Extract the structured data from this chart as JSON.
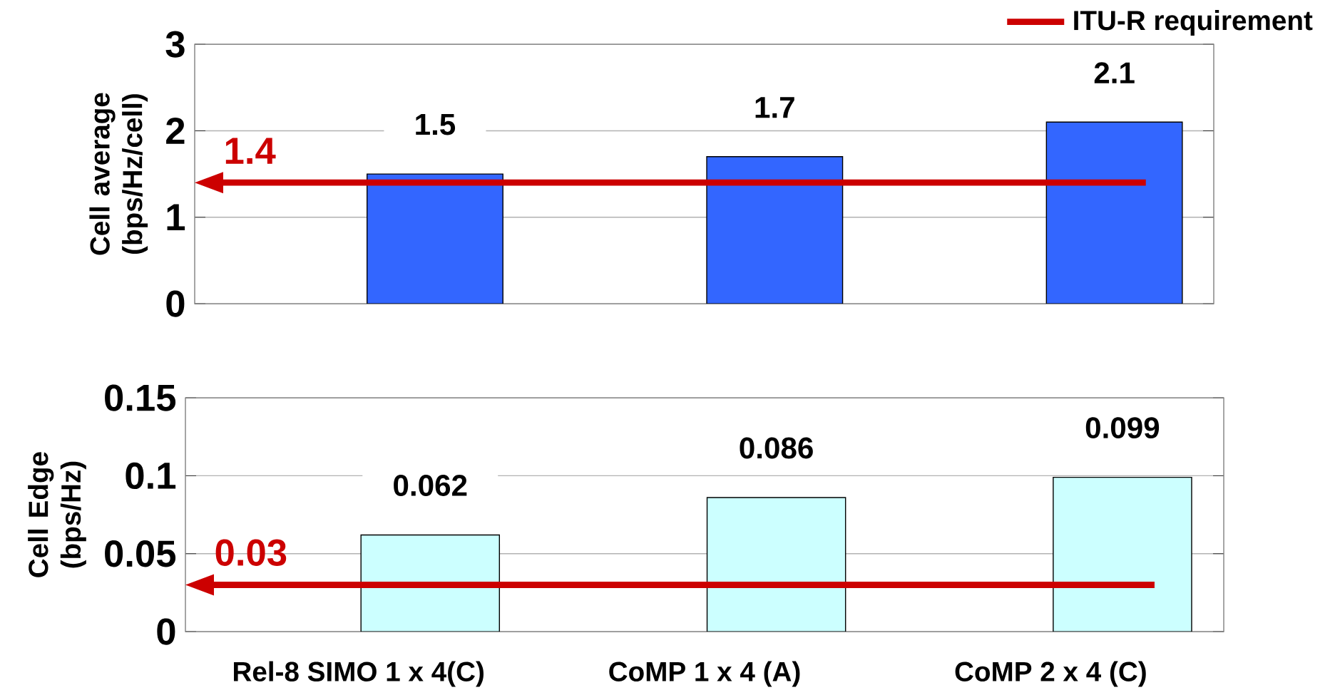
{
  "chart_data": [
    {
      "type": "bar",
      "ylabel": "Cell average (bps/Hz/cell)",
      "categories": [
        null,
        null,
        null
      ],
      "values": [
        1.5,
        1.7,
        2.1
      ],
      "color": "#3366ff",
      "ylim": [
        0,
        3
      ],
      "yticks": [
        0,
        1,
        2,
        3
      ],
      "grid": "y",
      "data_labels": true,
      "tick_labels": "y",
      "legend": "top right",
      "ref_lines": [
        {
          "axis": "y",
          "value": 1.4,
          "label": "ITU-R requirement",
          "color": "#cc0000"
        }
      ],
      "annotations": [
        {
          "text": "1.4",
          "y": 1.4
        }
      ]
    },
    {
      "type": "bar",
      "ylabel": "Cell Edge (bps/Hz)",
      "categories": [
        "Rel-8 SIMO 1 x 4(C)",
        "CoMP 1 x 4 (A)",
        "CoMP 2 x 4 (C)"
      ],
      "values": [
        0.062,
        0.086,
        0.099
      ],
      "color": "#ccffff",
      "ylim": [
        0,
        0.15
      ],
      "yticks": [
        0,
        0.05,
        0.1,
        0.15
      ],
      "grid": "y",
      "data_labels": true,
      "ref_lines": [
        {
          "axis": "y",
          "value": 0.03,
          "color": "#cc0000"
        }
      ],
      "annotations": [
        {
          "text": "0.03",
          "y": 0.03
        }
      ]
    }
  ]
}
